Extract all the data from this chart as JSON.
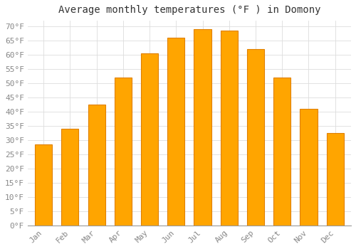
{
  "title": "Average monthly temperatures (°F ) in Domony",
  "months": [
    "Jan",
    "Feb",
    "Mar",
    "Apr",
    "May",
    "Jun",
    "Jul",
    "Aug",
    "Sep",
    "Oct",
    "Nov",
    "Dec"
  ],
  "values": [
    28.5,
    34.0,
    42.5,
    52.0,
    60.5,
    66.0,
    69.0,
    68.5,
    62.0,
    52.0,
    41.0,
    32.5
  ],
  "bar_color": "#FFA500",
  "bar_edge_color": "#E08000",
  "background_color": "#FFFFFF",
  "grid_color": "#DDDDDD",
  "ylim": [
    0,
    72
  ],
  "yticks": [
    0,
    5,
    10,
    15,
    20,
    25,
    30,
    35,
    40,
    45,
    50,
    55,
    60,
    65,
    70
  ],
  "title_fontsize": 10,
  "tick_fontsize": 8,
  "font_color": "#888888",
  "title_color": "#333333"
}
